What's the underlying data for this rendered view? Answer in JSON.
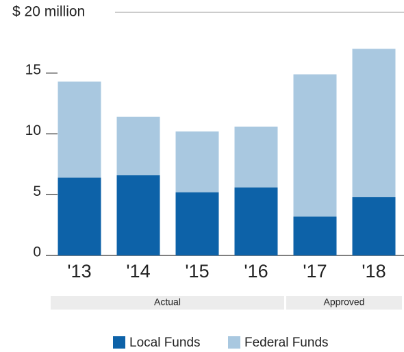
{
  "chart_data": {
    "type": "stacked_bar",
    "categories": [
      "'13",
      "'14",
      "'15",
      "'16",
      "'17",
      "'18"
    ],
    "series": [
      {
        "name": "Local Funds",
        "color": "#0d62a8",
        "values": [
          6.4,
          6.6,
          5.2,
          5.6,
          3.2,
          4.8
        ]
      },
      {
        "name": "Federal Funds",
        "color": "#a9c8e0",
        "values": [
          7.9,
          4.8,
          5.0,
          5.0,
          11.7,
          12.2
        ]
      }
    ],
    "ylim": [
      0,
      20
    ],
    "yticks": [
      0,
      5,
      10,
      15,
      {
        "value": 20,
        "label": "$ 20 million"
      }
    ],
    "groups": [
      {
        "label": "Actual",
        "from": 0,
        "to": 3
      },
      {
        "label": "Approved",
        "from": 4,
        "to": 5
      }
    ],
    "legend": "bottom"
  }
}
